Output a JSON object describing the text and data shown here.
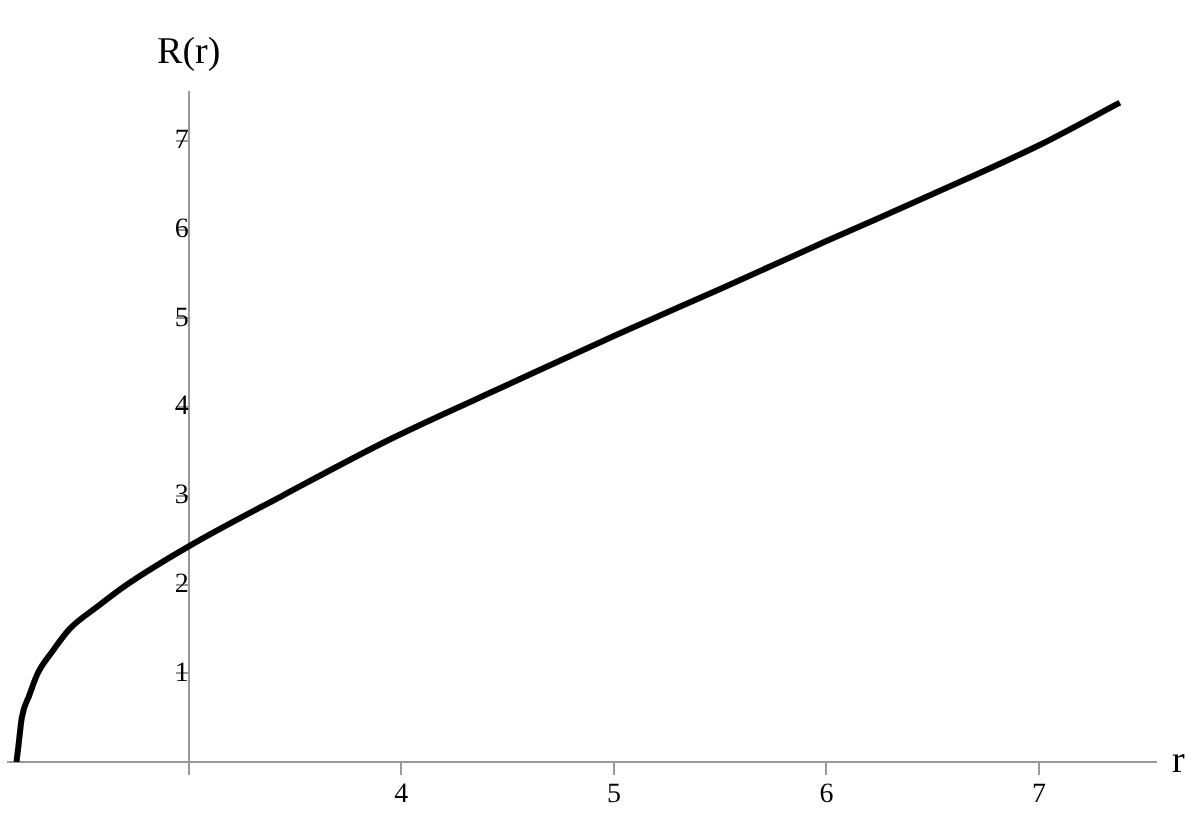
{
  "chart_data": {
    "type": "line",
    "xlabel": "r",
    "ylabel": "R(r)",
    "x": [
      2.19,
      2.2,
      2.215,
      2.25,
      2.29,
      2.36,
      2.44,
      2.57,
      2.71,
      3,
      3.44,
      3.95,
      4.5,
      5,
      5.5,
      6,
      6.5,
      7,
      7.38
    ],
    "series": [
      {
        "color": "#000000",
        "values": [
          0,
          0.2,
          0.5,
          0.75,
          1,
          1.25,
          1.5,
          1.75,
          2,
          2.43,
          3,
          3.64,
          4.25,
          4.8,
          5.33,
          5.87,
          6.4,
          6.95,
          7.43
        ]
      }
    ],
    "xlim": [
      2.15,
      7.55
    ],
    "ylim": [
      0,
      7.55
    ],
    "xticks": [
      {
        "value": 3,
        "label": null
      },
      4,
      5,
      6,
      7
    ],
    "yticks": [
      1,
      2,
      3,
      4,
      5,
      6,
      7
    ],
    "grid": false,
    "legend": false,
    "marker": "none",
    "line_style": "solid"
  }
}
